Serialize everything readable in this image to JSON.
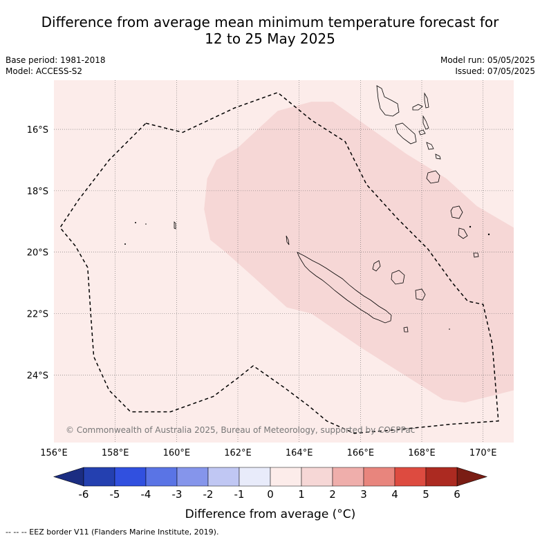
{
  "title_line1": "Difference from average mean minimum temperature forecast for",
  "title_line2": "12 to 25 May 2025",
  "left_info": {
    "base_period": "Base period: 1981-2018",
    "model": "Model: ACCESS-S2"
  },
  "right_info": {
    "model_run": "Model run: 05/05/2025",
    "issued": "Issued: 07/05/2025"
  },
  "copyright": "© Commonwealth of Australia 2025, Bureau of Meteorology, supported by COSPPac",
  "footer": "--  --  -- EEZ border V11 (Flanders Marine Institute, 2019).",
  "colors": {
    "background_fill": "#fcecea",
    "anomaly_fill": "#f6d7d6",
    "grid": "#666666",
    "eez_line": "#000000"
  },
  "chart_data": {
    "type": "heatmap",
    "xlabel": "",
    "ylabel": "",
    "xlim": [
      156,
      171
    ],
    "ylim": [
      -26.2,
      -14.4
    ],
    "x_ticks": [
      {
        "value": 156,
        "label": "156°E"
      },
      {
        "value": 158,
        "label": "158°E"
      },
      {
        "value": 160,
        "label": "160°E"
      },
      {
        "value": 162,
        "label": "162°E"
      },
      {
        "value": 164,
        "label": "164°E"
      },
      {
        "value": 166,
        "label": "166°E"
      },
      {
        "value": 168,
        "label": "168°E"
      },
      {
        "value": 170,
        "label": "170°E"
      }
    ],
    "y_ticks": [
      {
        "value": -16,
        "label": "16°S"
      },
      {
        "value": -18,
        "label": "18°S"
      },
      {
        "value": -20,
        "label": "20°S"
      },
      {
        "value": -22,
        "label": "22°S"
      },
      {
        "value": -24,
        "label": "24°S"
      }
    ],
    "grid": true,
    "regions": [
      {
        "category": "0 to 1",
        "fill": "#fcecea",
        "extent": "entire map"
      },
      {
        "category": "1 to 2",
        "fill": "#f6d7d6",
        "polygon": [
          [
            163.3,
            -15.4
          ],
          [
            164.4,
            -15.1
          ],
          [
            165.1,
            -15.1
          ],
          [
            167.5,
            -16.8
          ],
          [
            168.8,
            -17.6
          ],
          [
            169.8,
            -18.5
          ],
          [
            171,
            -19.2
          ],
          [
            171,
            -24.5
          ],
          [
            169.4,
            -24.9
          ],
          [
            168.7,
            -24.8
          ],
          [
            166,
            -23.1
          ],
          [
            164.4,
            -22.0
          ],
          [
            163.6,
            -21.8
          ],
          [
            162.5,
            -20.8
          ],
          [
            161.6,
            -20.0
          ],
          [
            161.1,
            -19.6
          ],
          [
            160.9,
            -18.6
          ],
          [
            161.0,
            -17.6
          ],
          [
            161.3,
            -17.0
          ],
          [
            162.0,
            -16.6
          ],
          [
            163.3,
            -15.4
          ]
        ]
      }
    ],
    "eez_border": [
      [
        159,
        -15.8
      ],
      [
        160.2,
        -16.1
      ],
      [
        161.9,
        -15.3
      ],
      [
        163.3,
        -14.8
      ],
      [
        164.4,
        -15.7
      ],
      [
        165.5,
        -16.4
      ],
      [
        166.2,
        -17.8
      ],
      [
        167.2,
        -18.9
      ],
      [
        168.2,
        -19.9
      ],
      [
        169.0,
        -21.0
      ],
      [
        169.5,
        -21.6
      ],
      [
        170.0,
        -21.7
      ],
      [
        170.3,
        -23.0
      ],
      [
        170.5,
        -25.5
      ],
      [
        169.0,
        -25.6
      ],
      [
        167.0,
        -25.8
      ],
      [
        165.8,
        -25.9
      ],
      [
        164.9,
        -25.5
      ],
      [
        164.3,
        -25.0
      ],
      [
        163.5,
        -24.4
      ],
      [
        162.5,
        -23.7
      ],
      [
        162.0,
        -24.1
      ],
      [
        161.2,
        -24.7
      ],
      [
        159.8,
        -25.2
      ],
      [
        158.5,
        -25.2
      ],
      [
        157.8,
        -24.5
      ],
      [
        157.3,
        -23.4
      ],
      [
        157.2,
        -22.0
      ],
      [
        157.1,
        -20.5
      ],
      [
        156.7,
        -19.8
      ],
      [
        156.2,
        -19.2
      ],
      [
        156.8,
        -18.3
      ],
      [
        157.8,
        -17.0
      ],
      [
        159,
        -15.8
      ]
    ],
    "colorbar": {
      "label": "Difference from average (°C)",
      "tick_labels": [
        "-6",
        "-5",
        "-4",
        "-3",
        "-2",
        "-1",
        "0",
        "1",
        "2",
        "3",
        "4",
        "5",
        "6"
      ],
      "extend": "both",
      "under_color": "#1b2d82",
      "over_color": "#7a1d14",
      "bins": [
        {
          "from": -6,
          "to": -5,
          "color": "#2440b0"
        },
        {
          "from": -5,
          "to": -4,
          "color": "#3150df"
        },
        {
          "from": -4,
          "to": -3,
          "color": "#5a74e5"
        },
        {
          "from": -3,
          "to": -2,
          "color": "#8595eb"
        },
        {
          "from": -2,
          "to": -1,
          "color": "#c0c7f3"
        },
        {
          "from": -1,
          "to": 0,
          "color": "#e8ebfa"
        },
        {
          "from": 0,
          "to": 1,
          "color": "#fcecea"
        },
        {
          "from": 1,
          "to": 2,
          "color": "#f6d7d6"
        },
        {
          "from": 2,
          "to": 3,
          "color": "#efaeab"
        },
        {
          "from": 3,
          "to": 4,
          "color": "#e8857d"
        },
        {
          "from": 4,
          "to": 5,
          "color": "#dd4b40"
        },
        {
          "from": 5,
          "to": 6,
          "color": "#ac2a21"
        }
      ]
    }
  }
}
